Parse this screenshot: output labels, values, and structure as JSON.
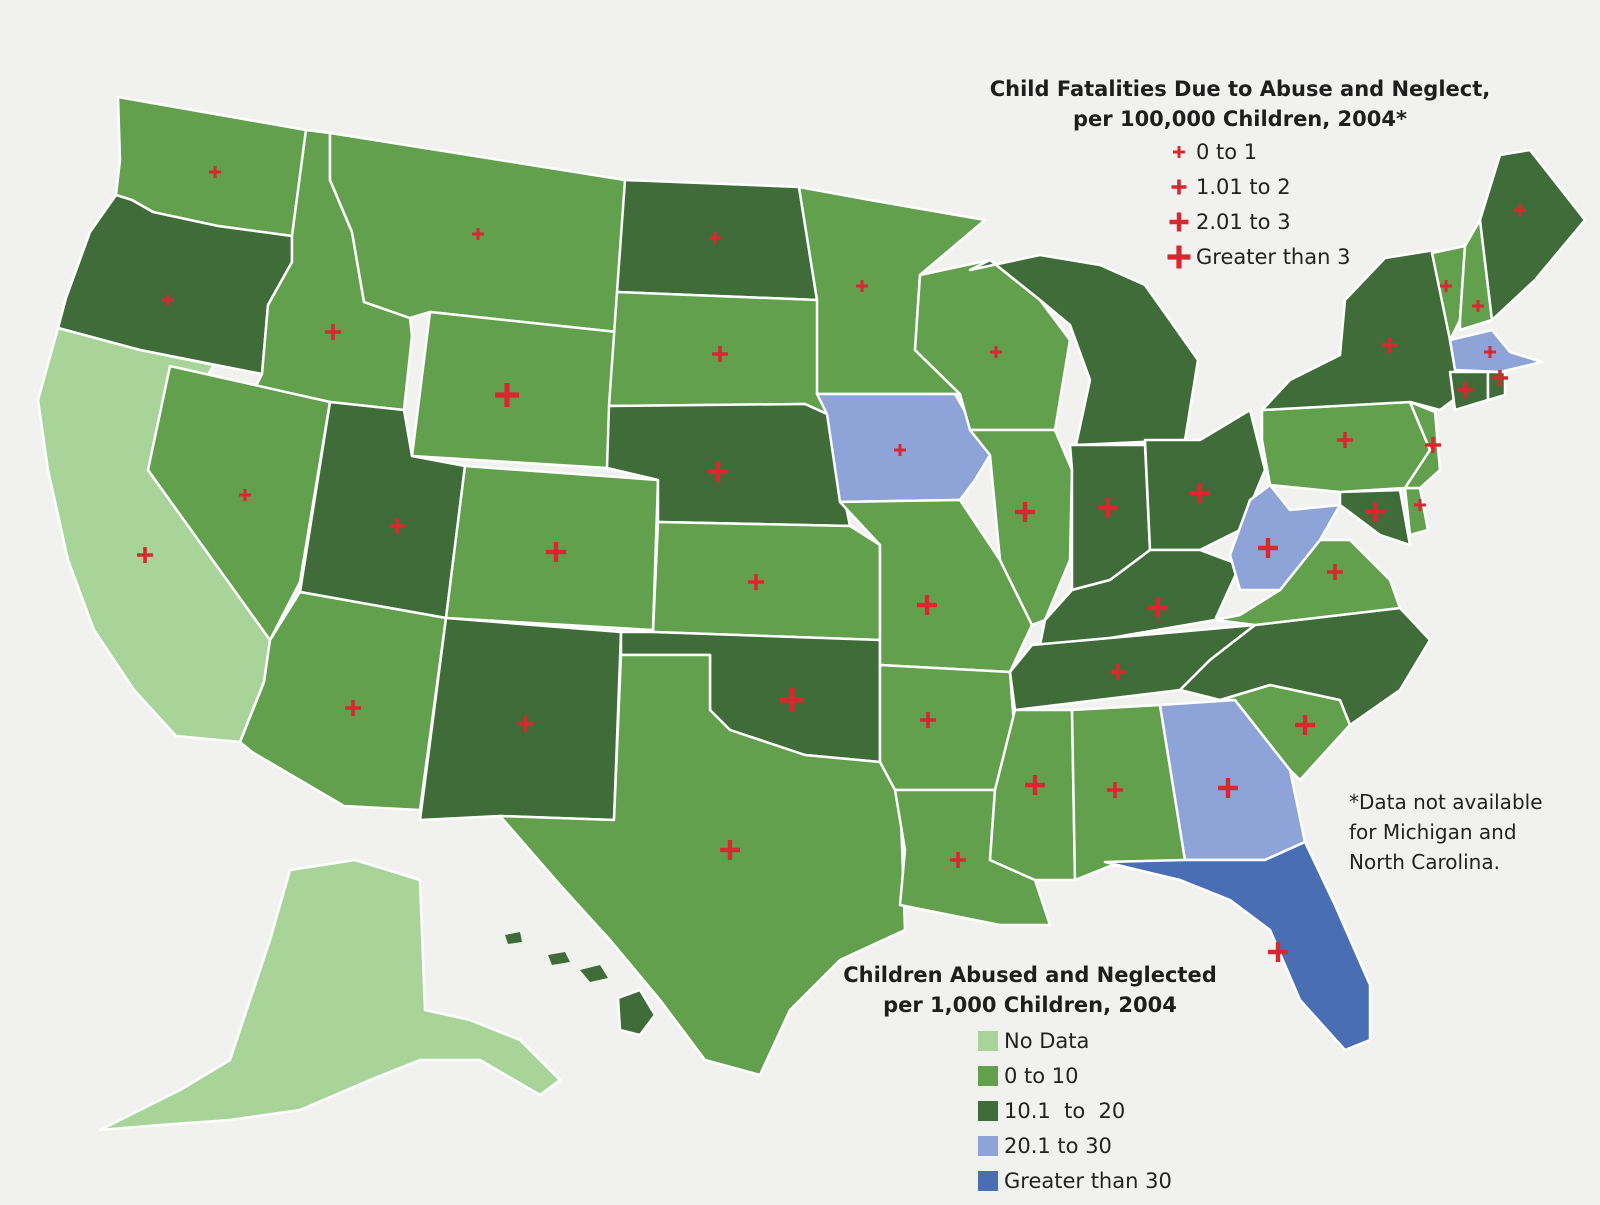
{
  "colors": {
    "background": "#f1f1ef",
    "no_data": "#a8d49a",
    "0_to_10": "#62a04e",
    "10.1_to_20": "#3f6c39",
    "20.1_to_30": "#8ea4d8",
    "greater_than_30": "#4a6eb4",
    "marker": "#d7282f"
  },
  "fatalities_legend": {
    "title_line1": "Child Fatalities Due to Abuse and Neglect,",
    "title_line2": "per 100,000 Children, 2004*",
    "items": [
      {
        "label": "0 to 1",
        "size": "small"
      },
      {
        "label": "1.01 to 2",
        "size": "medium"
      },
      {
        "label": "2.01 to 3",
        "size": "large"
      },
      {
        "label": "Greater than 3",
        "size": "xlarge"
      }
    ]
  },
  "abuse_legend": {
    "title_line1": "Children Abused and Neglected",
    "title_line2": "per 1,000 Children, 2004",
    "items": [
      {
        "label": "No Data",
        "class": "no_data"
      },
      {
        "label": "0 to 10",
        "class": "0_to_10"
      },
      {
        "label": "10.1  to  20",
        "class": "10.1_to_20"
      },
      {
        "label": "20.1 to 30",
        "class": "20.1_to_30"
      },
      {
        "label": "Greater than 30",
        "class": "greater_than_30"
      }
    ]
  },
  "footnote": {
    "line1": "*Data not available",
    "line2": "for Michigan and",
    "line3": "North Carolina."
  },
  "states": [
    {
      "abbr": "WA",
      "abuse": "0_to_10",
      "fatality": "small"
    },
    {
      "abbr": "OR",
      "abuse": "10.1_to_20",
      "fatality": "small"
    },
    {
      "abbr": "CA",
      "abuse": "no_data",
      "fatality": "medium"
    },
    {
      "abbr": "ID",
      "abuse": "0_to_10",
      "fatality": "medium"
    },
    {
      "abbr": "NV",
      "abuse": "0_to_10",
      "fatality": "small"
    },
    {
      "abbr": "MT",
      "abuse": "0_to_10",
      "fatality": "small"
    },
    {
      "abbr": "WY",
      "abuse": "0_to_10",
      "fatality": "xlarge"
    },
    {
      "abbr": "UT",
      "abuse": "10.1_to_20",
      "fatality": "medium"
    },
    {
      "abbr": "AZ",
      "abuse": "0_to_10",
      "fatality": "medium"
    },
    {
      "abbr": "CO",
      "abuse": "0_to_10",
      "fatality": "large"
    },
    {
      "abbr": "NM",
      "abuse": "10.1_to_20",
      "fatality": "medium"
    },
    {
      "abbr": "ND",
      "abuse": "10.1_to_20",
      "fatality": "small"
    },
    {
      "abbr": "SD",
      "abuse": "0_to_10",
      "fatality": "medium"
    },
    {
      "abbr": "NE",
      "abuse": "10.1_to_20",
      "fatality": "large"
    },
    {
      "abbr": "KS",
      "abuse": "0_to_10",
      "fatality": "medium"
    },
    {
      "abbr": "OK",
      "abuse": "10.1_to_20",
      "fatality": "xlarge"
    },
    {
      "abbr": "TX",
      "abuse": "0_to_10",
      "fatality": "large"
    },
    {
      "abbr": "MN",
      "abuse": "0_to_10",
      "fatality": "small"
    },
    {
      "abbr": "IA",
      "abuse": "20.1_to_30",
      "fatality": "small"
    },
    {
      "abbr": "MO",
      "abuse": "0_to_10",
      "fatality": "large"
    },
    {
      "abbr": "AR",
      "abuse": "0_to_10",
      "fatality": "medium"
    },
    {
      "abbr": "LA",
      "abuse": "0_to_10",
      "fatality": "medium"
    },
    {
      "abbr": "WI",
      "abuse": "0_to_10",
      "fatality": "small"
    },
    {
      "abbr": "IL",
      "abuse": "0_to_10",
      "fatality": "large"
    },
    {
      "abbr": "MI",
      "abuse": "10.1_to_20",
      "fatality": "none"
    },
    {
      "abbr": "IN",
      "abuse": "10.1_to_20",
      "fatality": "large"
    },
    {
      "abbr": "OH",
      "abuse": "10.1_to_20",
      "fatality": "large"
    },
    {
      "abbr": "KY",
      "abuse": "10.1_to_20",
      "fatality": "large"
    },
    {
      "abbr": "TN",
      "abuse": "10.1_to_20",
      "fatality": "medium"
    },
    {
      "abbr": "MS",
      "abuse": "0_to_10",
      "fatality": "large"
    },
    {
      "abbr": "AL",
      "abuse": "0_to_10",
      "fatality": "medium"
    },
    {
      "abbr": "GA",
      "abuse": "20.1_to_30",
      "fatality": "large"
    },
    {
      "abbr": "FL",
      "abuse": "greater_than_30",
      "fatality": "large"
    },
    {
      "abbr": "SC",
      "abuse": "0_to_10",
      "fatality": "large"
    },
    {
      "abbr": "NC",
      "abuse": "10.1_to_20",
      "fatality": "none"
    },
    {
      "abbr": "VA",
      "abuse": "0_to_10",
      "fatality": "medium"
    },
    {
      "abbr": "WV",
      "abuse": "20.1_to_30",
      "fatality": "large"
    },
    {
      "abbr": "MD",
      "abuse": "10.1_to_20",
      "fatality": "large"
    },
    {
      "abbr": "DE",
      "abuse": "0_to_10",
      "fatality": "small"
    },
    {
      "abbr": "PA",
      "abuse": "0_to_10",
      "fatality": "medium"
    },
    {
      "abbr": "NJ",
      "abuse": "0_to_10",
      "fatality": "medium"
    },
    {
      "abbr": "NY",
      "abuse": "10.1_to_20",
      "fatality": "medium"
    },
    {
      "abbr": "CT",
      "abuse": "10.1_to_20",
      "fatality": "medium"
    },
    {
      "abbr": "RI",
      "abuse": "10.1_to_20",
      "fatality": "medium"
    },
    {
      "abbr": "MA",
      "abuse": "20.1_to_30",
      "fatality": "small"
    },
    {
      "abbr": "VT",
      "abuse": "0_to_10",
      "fatality": "small"
    },
    {
      "abbr": "NH",
      "abuse": "0_to_10",
      "fatality": "small"
    },
    {
      "abbr": "ME",
      "abuse": "10.1_to_20",
      "fatality": "small"
    },
    {
      "abbr": "AK",
      "abuse": "no_data",
      "fatality": "none"
    },
    {
      "abbr": "HI",
      "abuse": "10.1_to_20",
      "fatality": "none"
    }
  ]
}
